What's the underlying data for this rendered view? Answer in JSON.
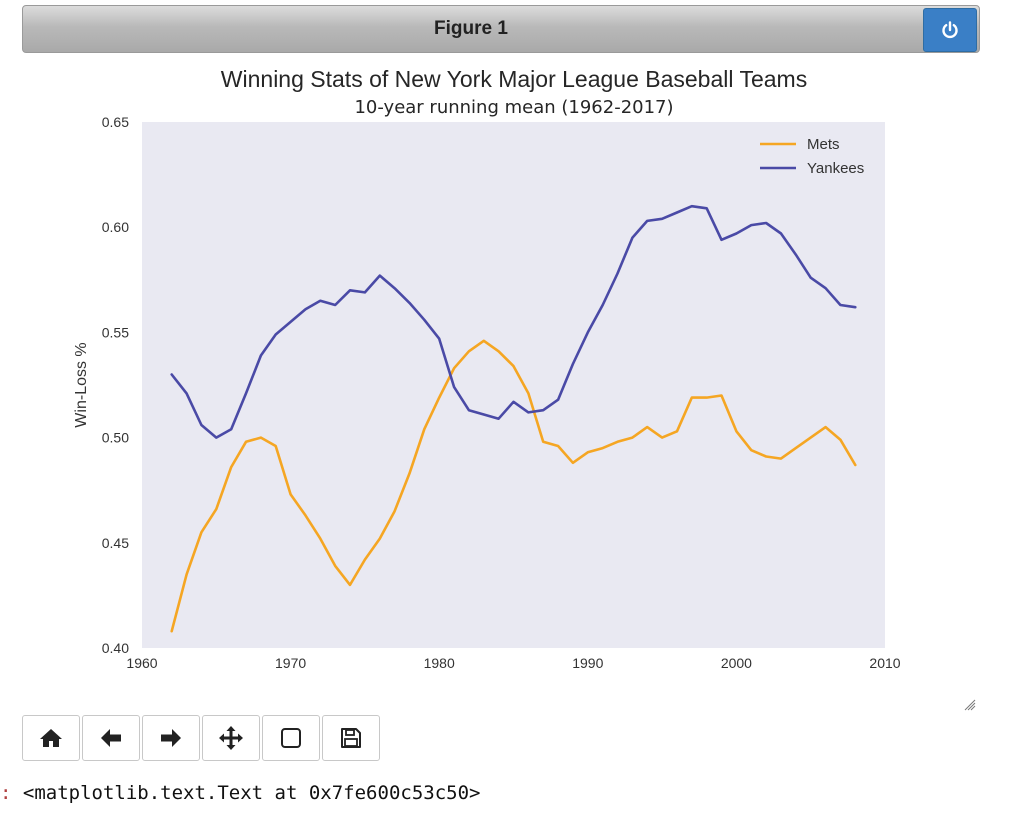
{
  "window": {
    "title": "Figure 1"
  },
  "chart_data": {
    "type": "line",
    "title": "Winning Stats of New York Major League Baseball Teams",
    "subtitle": "10-year running mean (1962-2017)",
    "xlabel": "",
    "ylabel": "Win-Loss %",
    "xlim": [
      1960,
      2010
    ],
    "ylim": [
      0.4,
      0.65
    ],
    "xticks": [
      "1960",
      "1970",
      "1980",
      "1990",
      "2000",
      "2010"
    ],
    "yticks": [
      "0.40",
      "0.45",
      "0.50",
      "0.55",
      "0.60",
      "0.65"
    ],
    "grid": false,
    "background": "#e9e9f2",
    "legend": "top-right",
    "x": [
      1962,
      1963,
      1964,
      1965,
      1966,
      1967,
      1968,
      1969,
      1970,
      1971,
      1972,
      1973,
      1974,
      1975,
      1976,
      1977,
      1978,
      1979,
      1980,
      1981,
      1982,
      1983,
      1984,
      1985,
      1986,
      1987,
      1988,
      1989,
      1990,
      1991,
      1992,
      1993,
      1994,
      1995,
      1996,
      1997,
      1998,
      1999,
      2000,
      2001,
      2002,
      2003,
      2004,
      2005,
      2006,
      2007,
      2008
    ],
    "series": [
      {
        "name": "Mets",
        "color": "#f5a623",
        "values": [
          0.408,
          0.435,
          0.455,
          0.466,
          0.486,
          0.498,
          0.5,
          0.496,
          0.473,
          0.463,
          0.452,
          0.439,
          0.43,
          0.442,
          0.452,
          0.465,
          0.483,
          0.504,
          0.519,
          0.533,
          0.541,
          0.546,
          0.541,
          0.534,
          0.521,
          0.498,
          0.496,
          0.488,
          0.493,
          0.495,
          0.498,
          0.5,
          0.505,
          0.5,
          0.503,
          0.519,
          0.519,
          0.52,
          0.503,
          0.494,
          0.491,
          0.49,
          0.495,
          0.5,
          0.505,
          0.499,
          0.487
        ]
      },
      {
        "name": "Yankees",
        "color": "#4a4aa6",
        "values": [
          0.53,
          0.521,
          0.506,
          0.5,
          0.504,
          0.521,
          0.539,
          0.549,
          0.555,
          0.561,
          0.565,
          0.563,
          0.57,
          0.569,
          0.577,
          0.571,
          0.564,
          0.556,
          0.547,
          0.524,
          0.513,
          0.511,
          0.509,
          0.517,
          0.512,
          0.513,
          0.518,
          0.535,
          0.55,
          0.563,
          0.578,
          0.595,
          0.603,
          0.604,
          0.607,
          0.61,
          0.609,
          0.594,
          0.597,
          0.601,
          0.602,
          0.597,
          0.587,
          0.576,
          0.571,
          0.563,
          0.562
        ]
      }
    ]
  },
  "toolbar": {
    "buttons": [
      {
        "name": "home-button",
        "icon": "home-icon"
      },
      {
        "name": "back-button",
        "icon": "arrow-left-icon"
      },
      {
        "name": "forward-button",
        "icon": "arrow-right-icon"
      },
      {
        "name": "pan-button",
        "icon": "move-icon"
      },
      {
        "name": "zoom-button",
        "icon": "square-icon"
      },
      {
        "name": "save-button",
        "icon": "floppy-icon"
      }
    ]
  },
  "output": {
    "prompt": ":",
    "text": " <matplotlib.text.Text at 0x7fe600c53c50>"
  },
  "colors": {
    "power_button": "#3a7fc6",
    "plot_background": "#e9e9f2"
  }
}
